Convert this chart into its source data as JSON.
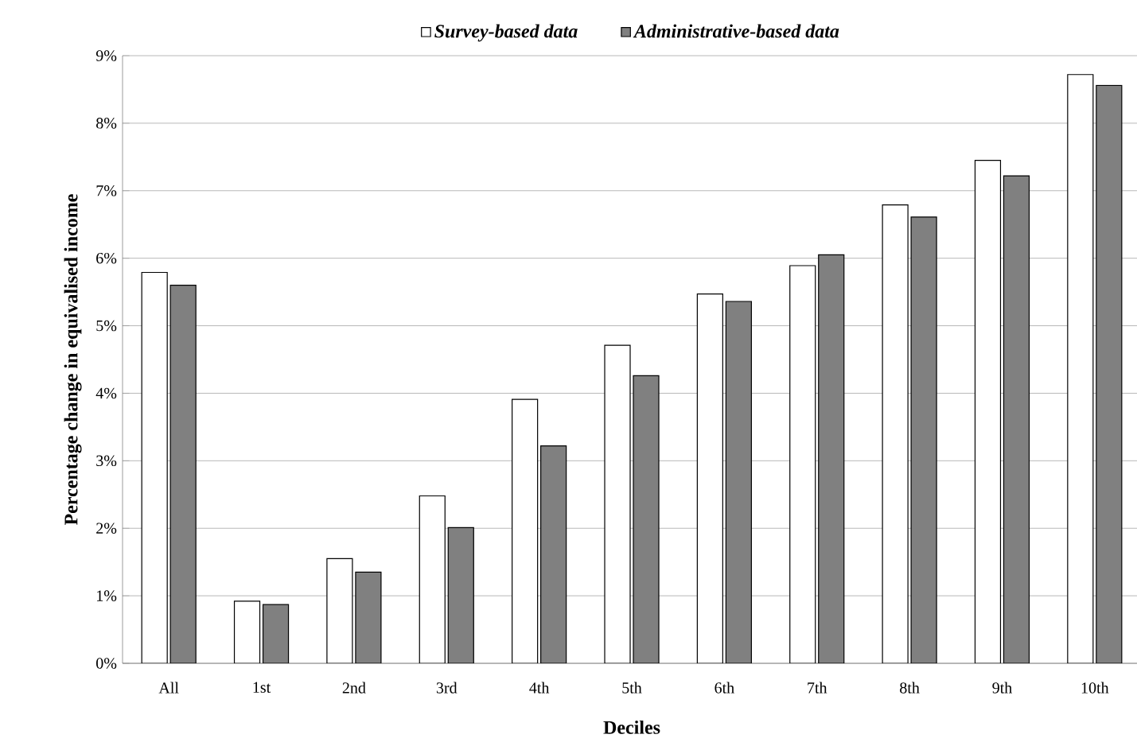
{
  "chart_data": {
    "type": "bar",
    "xlabel": "Deciles",
    "ylabel": "Percentage change in equivalised income",
    "categories": [
      "All",
      "1st",
      "2nd",
      "3rd",
      "4th",
      "5th",
      "6th",
      "7th",
      "8th",
      "9th",
      "10th"
    ],
    "series": [
      {
        "name": "Survey-based data",
        "color": "#ffffff",
        "values": [
          5.79,
          0.92,
          1.55,
          2.48,
          3.91,
          4.71,
          5.47,
          5.89,
          6.79,
          7.45,
          8.72
        ]
      },
      {
        "name": "Administrative-based data",
        "color": "#808080",
        "values": [
          5.6,
          0.87,
          1.35,
          2.01,
          3.22,
          4.26,
          5.36,
          6.05,
          6.61,
          7.22,
          8.56
        ]
      }
    ],
    "ylim": [
      0,
      9
    ],
    "yticks": [
      {
        "value": 0,
        "label": "0%"
      },
      {
        "value": 1,
        "label": "1%"
      },
      {
        "value": 2,
        "label": "2%"
      },
      {
        "value": 3,
        "label": "3%"
      },
      {
        "value": 4,
        "label": "4%"
      },
      {
        "value": 5,
        "label": "5%"
      },
      {
        "value": 6,
        "label": "6%"
      },
      {
        "value": 7,
        "label": "7%"
      },
      {
        "value": 8,
        "label": "8%"
      },
      {
        "value": 9,
        "label": "9%"
      }
    ],
    "grid": "y",
    "legend": "top"
  }
}
